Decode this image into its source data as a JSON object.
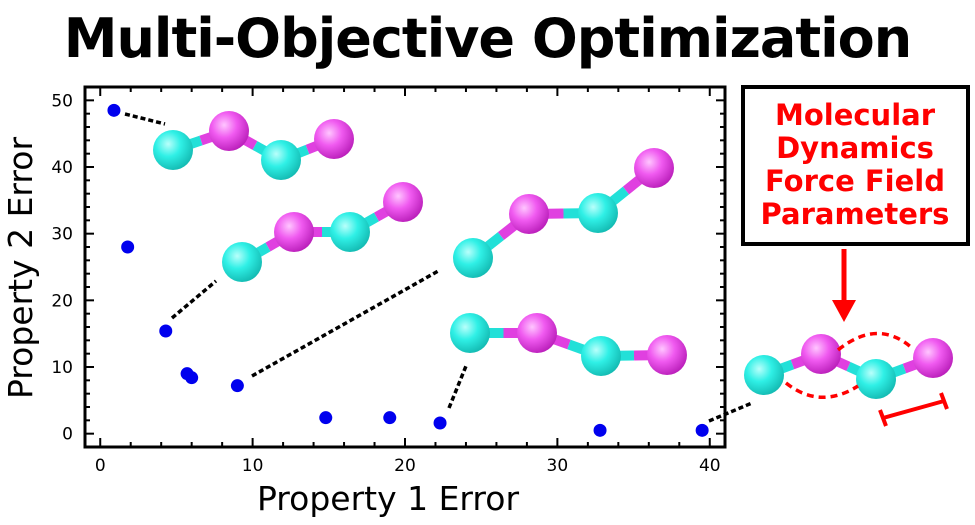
{
  "title": "Multi-Objective Optimization",
  "annotation": {
    "lines": [
      "Molecular",
      "Dynamics",
      "Force Field",
      "Parameters"
    ],
    "color": "#ff0000"
  },
  "colors": {
    "points": "#0000ee",
    "atom_a": "#22e0d8",
    "atom_b": "#e040e0",
    "leader": "#000000"
  },
  "chart_data": {
    "type": "scatter",
    "xlabel": "Property 1 Error",
    "ylabel": "Property 2 Error",
    "xlim": [
      -1,
      41
    ],
    "ylim": [
      -2,
      52
    ],
    "xticks": [
      0,
      10,
      20,
      30,
      40
    ],
    "yticks": [
      0,
      10,
      20,
      30,
      40,
      50
    ],
    "grid": false,
    "points": [
      {
        "x": 0.9,
        "y": 48.5
      },
      {
        "x": 1.8,
        "y": 28.0
      },
      {
        "x": 4.3,
        "y": 15.4
      },
      {
        "x": 5.7,
        "y": 9.0
      },
      {
        "x": 6.0,
        "y": 8.4
      },
      {
        "x": 9.0,
        "y": 7.2
      },
      {
        "x": 14.8,
        "y": 2.4
      },
      {
        "x": 19.0,
        "y": 2.4
      },
      {
        "x": 22.3,
        "y": 1.6
      },
      {
        "x": 32.8,
        "y": 0.5
      },
      {
        "x": 39.5,
        "y": 0.5
      }
    ]
  }
}
